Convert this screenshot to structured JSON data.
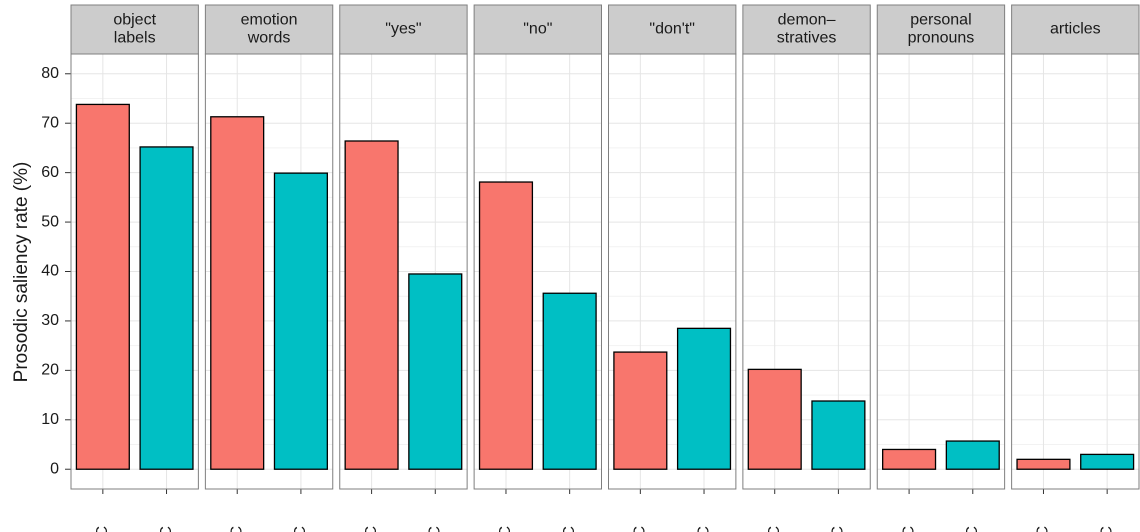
{
  "chart_data": {
    "type": "bar",
    "y_label": "Prosodic saliency rate (%)",
    "categories": [
      "RC",
      "SC"
    ],
    "colors": [
      "#f8766d",
      "#00bfc4"
    ],
    "ylim": [
      -4,
      84
    ],
    "yticks": [
      0,
      10,
      20,
      30,
      40,
      50,
      60,
      70,
      80
    ],
    "grid": true,
    "facets": [
      {
        "label": [
          "object",
          "labels"
        ],
        "values": [
          73.8,
          65.2
        ]
      },
      {
        "label": [
          "emotion",
          "words"
        ],
        "values": [
          71.3,
          59.9
        ]
      },
      {
        "label": [
          "\"yes\""
        ],
        "values": [
          66.4,
          39.5
        ]
      },
      {
        "label": [
          "\"no\""
        ],
        "values": [
          58.1,
          35.6
        ]
      },
      {
        "label": [
          "\"don't\""
        ],
        "values": [
          23.7,
          28.5
        ]
      },
      {
        "label": [
          "demon–",
          "stratives"
        ],
        "values": [
          20.2,
          13.8
        ]
      },
      {
        "label": [
          "personal",
          "pronouns"
        ],
        "values": [
          4.0,
          5.7
        ]
      },
      {
        "label": [
          "articles"
        ],
        "values": [
          2.0,
          3.0
        ]
      }
    ]
  }
}
